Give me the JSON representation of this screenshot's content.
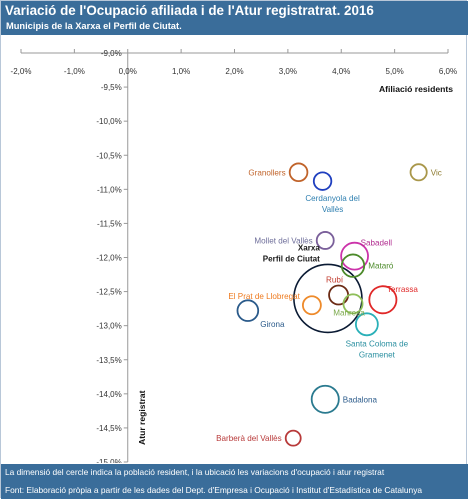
{
  "header": {
    "title": "Variació de l'Ocupació afiliada i de l'Atur registratrat. 2016",
    "subtitle": "Municipis de la Xarxa el Perfil de Ciutat."
  },
  "footer": {
    "note": "La dimensió del cercle indica la població resident, i la ubicació les variacions d'ocupació i atur registrat",
    "source": "Font: Elaboració pròpia a partir de les dades del Dept. d'Empresa i Ocupació i Institut d'Estadística de Catalunya"
  },
  "chart_data": {
    "type": "scatter",
    "subtype": "bubble",
    "xlabel": "Afiliació residents",
    "ylabel": "Atur registrat",
    "xlim": [
      -2.0,
      6.0
    ],
    "ylim": [
      -15.0,
      -9.0
    ],
    "xticks": [
      -2.0,
      -1.0,
      0.0,
      1.0,
      2.0,
      3.0,
      4.0,
      5.0,
      6.0
    ],
    "yticks": [
      -9.0,
      -9.5,
      -10.0,
      -10.5,
      -11.0,
      -11.5,
      -12.0,
      -12.5,
      -13.0,
      -13.5,
      -14.0,
      -14.5,
      -15.0
    ],
    "tick_format": "0.0%",
    "decimal_separator": ",",
    "x_axis_position": "top",
    "y_axis_at_x": 0,
    "grid": false,
    "points": [
      {
        "name": "Granollers",
        "x": 3.2,
        "y": -10.75,
        "size": 0.06,
        "color": "#c0632a",
        "label_color": "#c0632a",
        "label_lines": [
          "Granollers"
        ],
        "label_pos": "left"
      },
      {
        "name": "Vic",
        "x": 5.45,
        "y": -10.75,
        "size": 0.044,
        "color": "#a9974a",
        "label_color": "#8c7a2e",
        "label_lines": [
          "Vic"
        ],
        "label_pos": "right"
      },
      {
        "name": "Cerdanyola del Vallès",
        "x": 3.65,
        "y": -10.88,
        "size": 0.058,
        "color": "#1f3fbf",
        "label_color": "#2e7fb0",
        "label_lines": [
          "Cerdanyola del",
          "Vallès"
        ],
        "label_pos": "below"
      },
      {
        "name": "Mollet del Vallès",
        "x": 3.7,
        "y": -11.75,
        "size": 0.052,
        "color": "#7a5f9a",
        "label_color": "#6e6e9a",
        "label_lines": [
          "Mollet del Vallès"
        ],
        "label_pos": "left"
      },
      {
        "name": "Sabadell",
        "x": 4.25,
        "y": -11.98,
        "size": 0.21,
        "color": "#cc33aa",
        "label_color": "#b02a8e",
        "label_lines": [
          "Sabadell"
        ],
        "label_pos": "upper-right"
      },
      {
        "name": "Mataró",
        "x": 4.22,
        "y": -12.12,
        "size": 0.126,
        "color": "#4c8a2a",
        "label_color": "#4c8a2a",
        "label_lines": [
          "Mataró"
        ],
        "label_pos": "right"
      },
      {
        "name": "Xarxa Perfil de Ciutat",
        "x": 3.75,
        "y": -12.6,
        "size": 2.0,
        "color": "#0a1a33",
        "label_color": "#1a1a1a",
        "label_lines": [
          "Xarxa",
          "Perfil de Ciutat"
        ],
        "label_pos": "upper-left"
      },
      {
        "name": "Rubí",
        "x": 3.95,
        "y": -12.55,
        "size": 0.076,
        "color": "#6b2a14",
        "label_color": "#c0392b",
        "label_lines": [
          "Rubí"
        ],
        "label_pos": "upper-left"
      },
      {
        "name": "Terrassa",
        "x": 4.78,
        "y": -12.62,
        "size": 0.215,
        "color": "#e02828",
        "label_color": "#e02828",
        "label_lines": [
          "Terrassa"
        ],
        "label_pos": "upper-right"
      },
      {
        "name": "El Prat de Llobregat",
        "x": 3.45,
        "y": -12.7,
        "size": 0.063,
        "color": "#ee8a2a",
        "label_color": "#ee7a1e",
        "label_lines": [
          "El Prat de Llobregat"
        ],
        "label_pos": "upper-left"
      },
      {
        "name": "Manresa",
        "x": 4.22,
        "y": -12.68,
        "size": 0.076,
        "color": "#8fbf5a",
        "label_color": "#7aa84a",
        "label_lines": [
          "Manresa"
        ],
        "label_pos": "below-left"
      },
      {
        "name": "Girona",
        "x": 2.25,
        "y": -12.78,
        "size": 0.099,
        "color": "#2a5a8a",
        "label_color": "#2a5a8a",
        "label_lines": [
          "Girona"
        ],
        "label_pos": "lower-right"
      },
      {
        "name": "Santa Coloma de Gramenet",
        "x": 4.48,
        "y": -12.98,
        "size": 0.118,
        "color": "#2ab0b8",
        "label_color": "#2a8fa0",
        "label_lines": [
          "Santa Coloma de",
          "Gramenet"
        ],
        "label_pos": "below"
      },
      {
        "name": "Badalona",
        "x": 3.7,
        "y": -14.08,
        "size": 0.215,
        "color": "#2a7a8f",
        "label_color": "#2a5a8a",
        "label_lines": [
          "Badalona"
        ],
        "label_pos": "right"
      },
      {
        "name": "Barberà del Vallès",
        "x": 3.1,
        "y": -14.65,
        "size": 0.033,
        "color": "#b83a3a",
        "label_color": "#b83a3a",
        "label_lines": [
          "Barberà del Vallès"
        ],
        "label_pos": "left"
      }
    ]
  }
}
